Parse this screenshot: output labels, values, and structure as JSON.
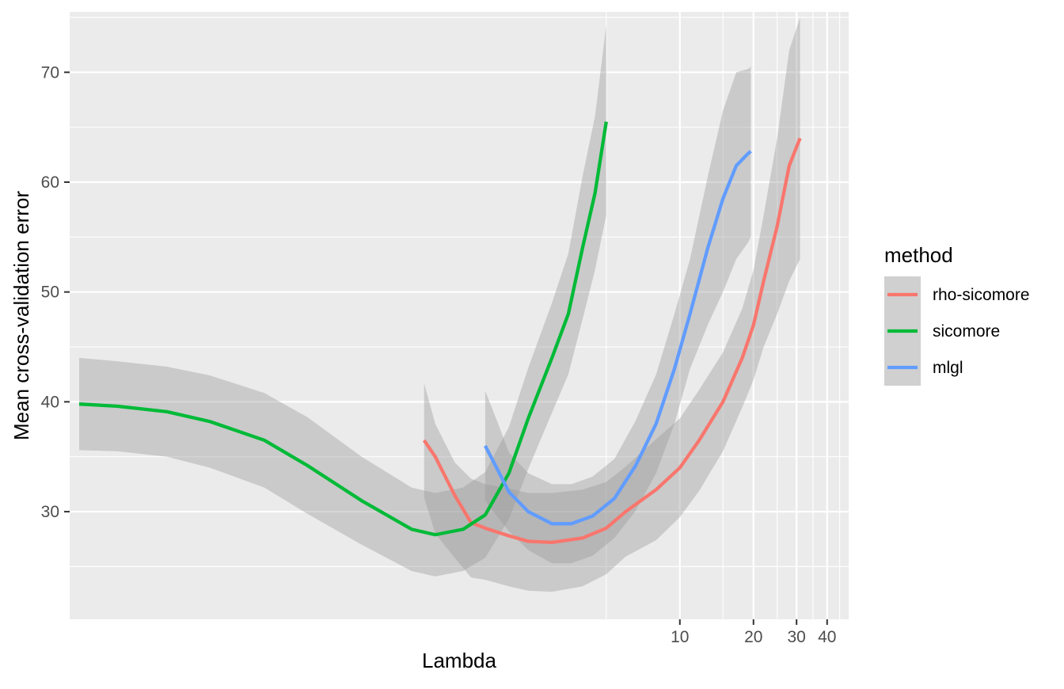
{
  "chart_data": {
    "type": "line",
    "title": "",
    "xlabel": "Lambda",
    "ylabel": "Mean cross-validation error",
    "x_scale": "log10",
    "xlim": [
      0.032,
      49
    ],
    "ylim": [
      20.2,
      75.5
    ],
    "x_ticks": [
      10,
      20,
      30,
      40
    ],
    "y_ticks": [
      30,
      40,
      50,
      60,
      70
    ],
    "grid": true,
    "legend": {
      "title": "method",
      "position": "right",
      "entries": [
        {
          "label": "rho-sicomore",
          "color": "#F8766D"
        },
        {
          "label": "sicomore",
          "color": "#00BA38"
        },
        {
          "label": "mlgl",
          "color": "#619CFF"
        }
      ]
    },
    "series": [
      {
        "name": "rho-sicomore",
        "color": "#F8766D",
        "x": [
          0.9,
          1.0,
          1.2,
          1.4,
          1.6,
          2.0,
          2.4,
          3.0,
          4.0,
          5.0,
          6.0,
          8.0,
          10.0,
          12.0,
          15.0,
          18.0,
          20.0,
          22.0,
          25.0,
          28.0,
          31.0
        ],
        "y": [
          36.5,
          35.0,
          31.5,
          29.0,
          28.5,
          27.8,
          27.3,
          27.2,
          27.6,
          28.5,
          30.0,
          32.0,
          34.0,
          36.5,
          40.0,
          44.0,
          47.0,
          51.0,
          56.0,
          61.5,
          64.0
        ],
        "ci_lower": [
          31.3,
          28.0,
          25.8,
          24.0,
          23.8,
          23.2,
          22.8,
          22.7,
          23.2,
          24.3,
          25.9,
          27.4,
          29.5,
          31.9,
          35.5,
          39.5,
          42.0,
          45.0,
          48.0,
          51.0,
          53.0
        ],
        "ci_upper": [
          41.7,
          38.0,
          34.5,
          33.0,
          32.5,
          32.1,
          31.7,
          31.7,
          32.0,
          32.7,
          34.1,
          36.6,
          38.5,
          41.1,
          44.5,
          48.5,
          52.0,
          57.0,
          64.0,
          72.0,
          75.0
        ]
      },
      {
        "name": "sicomore",
        "color": "#00BA38",
        "x": [
          0.035,
          0.05,
          0.08,
          0.12,
          0.2,
          0.3,
          0.5,
          0.8,
          1.0,
          1.3,
          1.6,
          2.0,
          2.4,
          3.0,
          3.5,
          4.0,
          4.5,
          5.0
        ],
        "y": [
          39.8,
          39.6,
          39.1,
          38.2,
          36.5,
          34.2,
          31.0,
          28.4,
          27.9,
          28.4,
          29.7,
          33.5,
          38.5,
          44.0,
          48.0,
          54.0,
          59.0,
          65.5
        ],
        "ci_lower": [
          35.6,
          35.5,
          35.0,
          34.0,
          32.2,
          29.8,
          27.0,
          24.6,
          24.1,
          24.6,
          25.8,
          29.3,
          33.9,
          39.0,
          42.5,
          47.5,
          52.0,
          57.0
        ],
        "ci_upper": [
          44.0,
          43.7,
          43.2,
          42.4,
          40.8,
          38.6,
          35.0,
          32.2,
          31.7,
          32.2,
          33.6,
          37.7,
          43.1,
          49.0,
          53.5,
          60.5,
          66.0,
          74.3
        ]
      },
      {
        "name": "mlgl",
        "color": "#619CFF",
        "x": [
          1.6,
          1.8,
          2.0,
          2.4,
          3.0,
          3.6,
          4.4,
          5.4,
          6.6,
          8.0,
          9.5,
          11.0,
          13.0,
          15.0,
          17.0,
          19.0,
          19.5
        ],
        "y": [
          36.0,
          33.8,
          31.8,
          30.0,
          28.9,
          28.9,
          29.6,
          31.2,
          34.2,
          38.0,
          43.0,
          48.0,
          54.0,
          58.5,
          61.5,
          62.6,
          62.8
        ],
        "ci_lower": [
          31.0,
          29.5,
          28.2,
          26.5,
          25.3,
          25.3,
          26.0,
          27.6,
          30.1,
          33.5,
          38.0,
          43.0,
          47.0,
          50.0,
          53.0,
          54.5,
          55.0
        ],
        "ci_upper": [
          41.0,
          38.1,
          35.4,
          33.5,
          32.5,
          32.5,
          33.2,
          34.8,
          38.3,
          42.5,
          48.0,
          53.0,
          60.5,
          66.5,
          70.0,
          70.3,
          70.5
        ]
      }
    ]
  }
}
